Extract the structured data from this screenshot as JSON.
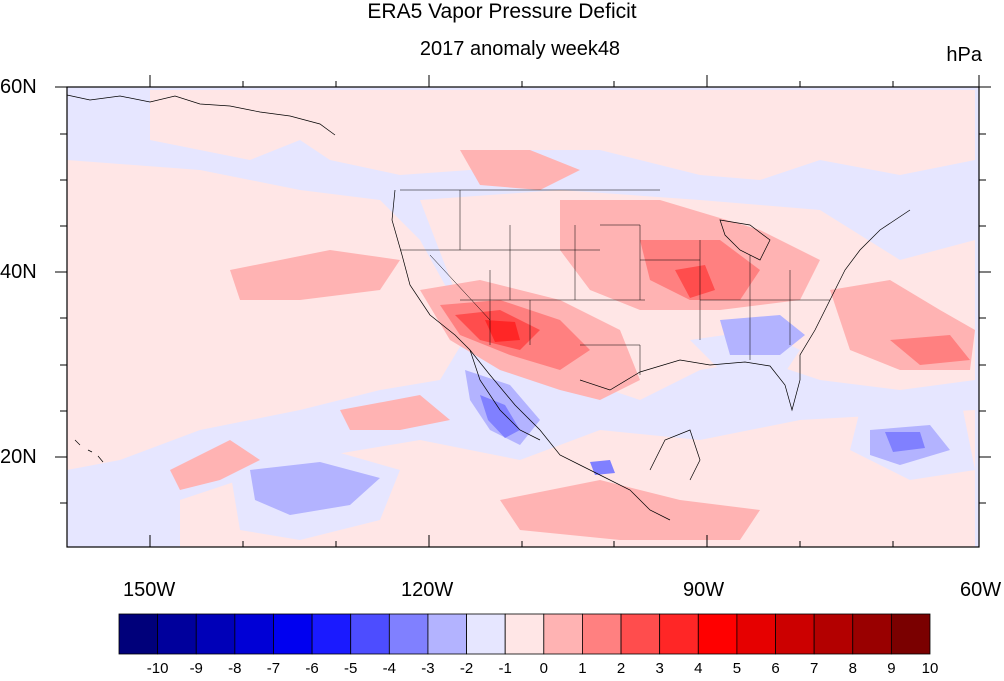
{
  "title": "ERA5 Vapor Pressure Deficit",
  "subtitle": "2017 anomaly week48",
  "units": "hPa",
  "map": {
    "projection": "cylindrical-equidistant",
    "lon_range": [
      -160,
      -60
    ],
    "lat_range": [
      10,
      60
    ]
  },
  "lat_ticks": [
    {
      "lat": 60,
      "label": "60N"
    },
    {
      "lat": 40,
      "label": "40N"
    },
    {
      "lat": 20,
      "label": "20N"
    }
  ],
  "lon_ticks": [
    {
      "lon": -150,
      "label": "150W"
    },
    {
      "lon": -120,
      "label": "120W"
    },
    {
      "lon": -90,
      "label": "90W"
    },
    {
      "lon": -60,
      "label": "60W"
    }
  ],
  "colorbar": {
    "labels": [
      "-10",
      "-9",
      "-8",
      "-7",
      "-6",
      "-5",
      "-4",
      "-3",
      "-2",
      "-1",
      "0",
      "1",
      "2",
      "3",
      "4",
      "5",
      "6",
      "7",
      "8",
      "9",
      "10"
    ],
    "colors": [
      "#00007a",
      "#00009c",
      "#0000b8",
      "#0000d6",
      "#0000f0",
      "#1a1aff",
      "#4d4dff",
      "#8080ff",
      "#b3b3ff",
      "#e6e6ff",
      "#ffe6e6",
      "#ffb3b3",
      "#ff8080",
      "#ff4d4d",
      "#ff2626",
      "#ff0000",
      "#e60000",
      "#cc0000",
      "#b30000",
      "#990000",
      "#7a0000"
    ]
  }
}
